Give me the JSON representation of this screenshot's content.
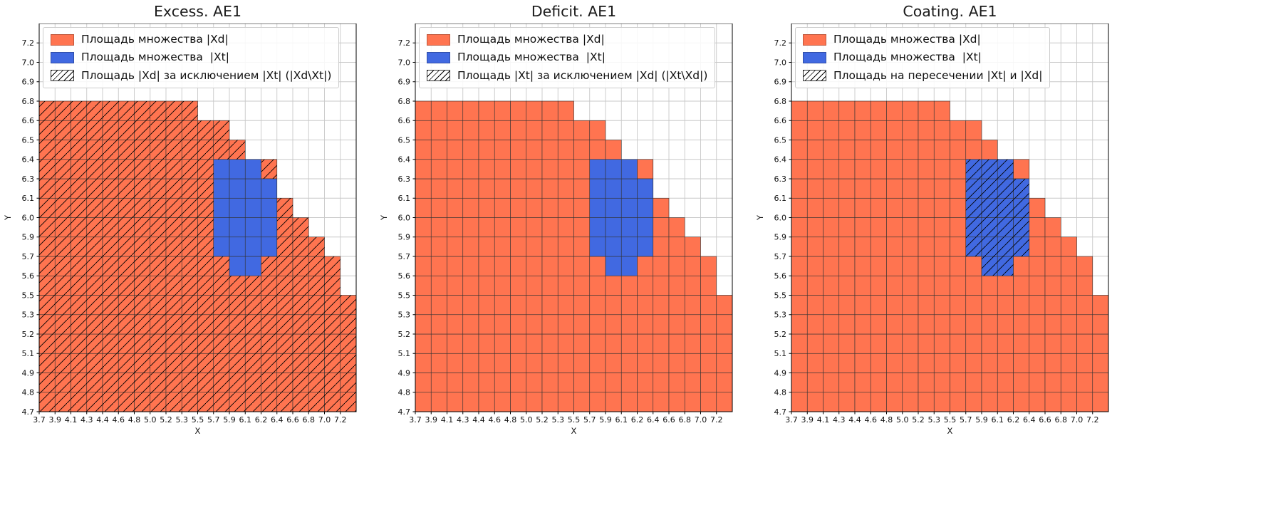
{
  "figure": {
    "background": "#ffffff"
  },
  "chart_data": {
    "type": "heatmap",
    "description": "Three 20x20 cell-grid set-area plots sharing identical data; only the hatched region differs per subplot.",
    "x_label": "X",
    "y_label": "Y",
    "grid": true,
    "x_ticks": [
      "3.7",
      "3.9",
      "4.1",
      "4.3",
      "4.4",
      "4.6",
      "4.8",
      "5.0",
      "5.2",
      "5.3",
      "5.5",
      "5.7",
      "5.9",
      "6.1",
      "6.2",
      "6.4",
      "6.6",
      "6.8",
      "7.0",
      "7.2"
    ],
    "y_ticks": [
      "4.7",
      "4.8",
      "4.9",
      "5.1",
      "5.2",
      "5.3",
      "5.5",
      "5.6",
      "5.7",
      "5.9",
      "6.0",
      "6.1",
      "6.3",
      "6.4",
      "6.5",
      "6.6",
      "6.8",
      "6.9",
      "7.0",
      "7.2"
    ],
    "n_cols": 20,
    "n_rows": 20,
    "colors": {
      "xd": "#ff7450",
      "xt": "#4169e1",
      "grid": "#c8c8c8",
      "cell_edge": "#333333",
      "hatch": "#000000",
      "axis": "#000000"
    },
    "xd_col_top_row_counts": [
      16,
      16,
      16,
      16,
      16,
      16,
      16,
      16,
      16,
      16,
      15,
      15,
      14,
      13,
      13,
      11,
      10,
      9,
      8,
      6
    ],
    "xt_cells": [
      {
        "col": 11,
        "row_from": 8,
        "row_to": 12
      },
      {
        "col": 12,
        "row_from": 7,
        "row_to": 12
      },
      {
        "col": 13,
        "row_from": 7,
        "row_to": 12
      },
      {
        "col": 14,
        "row_from": 8,
        "row_to": 11
      }
    ],
    "subplots": [
      {
        "title": "Excess. AE1",
        "hatched_region": "xd",
        "legend": [
          "Площадь множества |Xd|",
          "Площадь множества  |Xt|",
          "Площадь |Xd| за исключением |Xt| (|Xd\\Xt|)"
        ]
      },
      {
        "title": "Deficit. AE1",
        "hatched_region": "none",
        "legend": [
          "Площадь множества |Xd|",
          "Площадь множества  |Xt|",
          "Площадь |Xt| за исключением |Xd| (|Xt\\Xd|)"
        ]
      },
      {
        "title": "Coating. AE1",
        "hatched_region": "xt",
        "legend": [
          "Площадь множества |Xd|",
          "Площадь множества  |Xt|",
          "Площадь на пересечении |Xt| и |Xd|"
        ]
      }
    ]
  }
}
